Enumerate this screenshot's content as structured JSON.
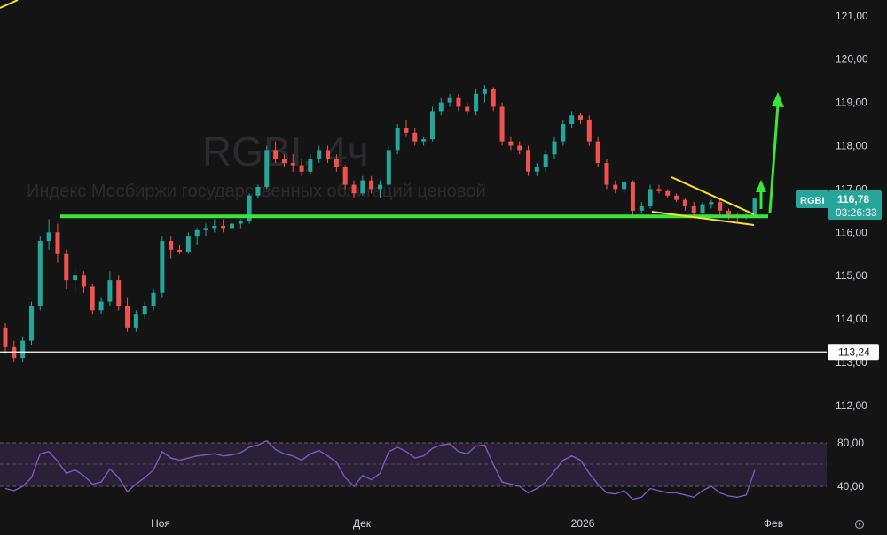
{
  "chart_data": {
    "type": "candlestick",
    "symbol": "RGBI",
    "watermark": {
      "title": "RGBI, 4ч",
      "subtitle": "Индекс Мосбиржи государственных облигаций ценовой"
    },
    "price_axis": {
      "ylim": [
        111.4,
        121.4
      ],
      "ticks": [
        "121,00",
        "120,00",
        "119,00",
        "118,00",
        "117,00",
        "116,00",
        "115,00",
        "114,00",
        "113,00",
        "112,00"
      ]
    },
    "time_axis": {
      "ticks": [
        "Ноя",
        "Дек",
        "2026",
        "Фев"
      ]
    },
    "last_price": {
      "symbol": "RGBI",
      "value": "116,78",
      "countdown": "03:26:33",
      "color": "#26a69a"
    },
    "horizontal_line": {
      "label": "113,24",
      "value": 113.24
    },
    "support_level": 116.37,
    "colors": {
      "up": "#26a69a",
      "down": "#ef5350",
      "support": "#39e639",
      "triangle": "#f5e12e",
      "rsi": "#7e57c2"
    },
    "candles": [
      [
        113.8,
        113.9,
        113.2,
        113.35
      ],
      [
        113.35,
        113.5,
        113.0,
        113.1
      ],
      [
        113.1,
        113.6,
        113.0,
        113.5
      ],
      [
        113.5,
        114.4,
        113.4,
        114.3
      ],
      [
        114.3,
        115.9,
        114.2,
        115.8
      ],
      [
        115.8,
        116.3,
        115.6,
        116.0
      ],
      [
        116.0,
        116.2,
        115.3,
        115.5
      ],
      [
        115.5,
        115.6,
        114.7,
        114.9
      ],
      [
        114.9,
        115.2,
        114.6,
        115.0
      ],
      [
        115.0,
        115.1,
        114.6,
        114.75
      ],
      [
        114.75,
        114.8,
        114.1,
        114.2
      ],
      [
        114.2,
        114.5,
        114.1,
        114.4
      ],
      [
        114.4,
        115.1,
        114.3,
        114.9
      ],
      [
        114.9,
        115.0,
        114.2,
        114.3
      ],
      [
        114.3,
        114.5,
        113.7,
        113.8
      ],
      [
        113.8,
        114.2,
        113.7,
        114.1
      ],
      [
        114.1,
        114.4,
        114.0,
        114.3
      ],
      [
        114.3,
        114.7,
        114.2,
        114.6
      ],
      [
        114.6,
        115.9,
        114.5,
        115.8
      ],
      [
        115.8,
        115.9,
        115.4,
        115.6
      ],
      [
        115.6,
        115.7,
        115.5,
        115.55
      ],
      [
        115.55,
        116.0,
        115.5,
        115.9
      ],
      [
        115.9,
        116.1,
        115.7,
        116.05
      ],
      [
        116.05,
        116.2,
        115.9,
        116.1
      ],
      [
        116.1,
        116.3,
        116.0,
        116.15
      ],
      [
        116.15,
        116.3,
        116.0,
        116.1
      ],
      [
        116.1,
        116.3,
        116.0,
        116.2
      ],
      [
        116.2,
        116.3,
        116.1,
        116.25
      ],
      [
        116.25,
        116.9,
        116.2,
        116.85
      ],
      [
        116.85,
        117.1,
        116.8,
        117.05
      ],
      [
        117.05,
        118.0,
        117.0,
        117.9
      ],
      [
        117.9,
        118.1,
        117.6,
        117.7
      ],
      [
        117.7,
        117.8,
        117.5,
        117.6
      ],
      [
        117.6,
        117.8,
        117.4,
        117.55
      ],
      [
        117.55,
        117.7,
        117.3,
        117.4
      ],
      [
        117.4,
        117.8,
        117.35,
        117.7
      ],
      [
        117.7,
        118.0,
        117.6,
        117.9
      ],
      [
        117.9,
        118.0,
        117.6,
        117.7
      ],
      [
        117.7,
        117.8,
        117.4,
        117.5
      ],
      [
        117.5,
        117.55,
        117.0,
        117.1
      ],
      [
        117.1,
        117.2,
        116.8,
        116.9
      ],
      [
        116.9,
        117.3,
        116.85,
        117.2
      ],
      [
        117.2,
        117.3,
        116.9,
        117.0
      ],
      [
        117.0,
        117.2,
        116.8,
        117.1
      ],
      [
        117.1,
        118.0,
        117.0,
        117.9
      ],
      [
        117.9,
        118.5,
        117.8,
        118.4
      ],
      [
        118.4,
        118.6,
        118.2,
        118.3
      ],
      [
        118.3,
        118.4,
        118.0,
        118.1
      ],
      [
        118.1,
        118.2,
        118.0,
        118.15
      ],
      [
        118.15,
        118.9,
        118.1,
        118.8
      ],
      [
        118.8,
        119.1,
        118.7,
        119.0
      ],
      [
        119.0,
        119.2,
        118.9,
        119.1
      ],
      [
        119.1,
        119.2,
        118.8,
        118.9
      ],
      [
        118.9,
        119.0,
        118.7,
        118.8
      ],
      [
        118.8,
        119.3,
        118.7,
        119.2
      ],
      [
        119.2,
        119.4,
        119.0,
        119.3
      ],
      [
        119.3,
        119.35,
        118.8,
        118.9
      ],
      [
        118.9,
        119.0,
        118.0,
        118.1
      ],
      [
        118.1,
        118.2,
        117.9,
        118.0
      ],
      [
        118.0,
        118.1,
        117.8,
        117.9
      ],
      [
        117.9,
        118.0,
        117.3,
        117.4
      ],
      [
        117.4,
        117.6,
        117.3,
        117.5
      ],
      [
        117.5,
        117.9,
        117.4,
        117.8
      ],
      [
        117.8,
        118.2,
        117.7,
        118.1
      ],
      [
        118.1,
        118.6,
        118.0,
        118.5
      ],
      [
        118.5,
        118.8,
        118.4,
        118.7
      ],
      [
        118.7,
        118.75,
        118.5,
        118.6
      ],
      [
        118.6,
        118.7,
        118.0,
        118.1
      ],
      [
        118.1,
        118.2,
        117.5,
        117.6
      ],
      [
        117.6,
        117.7,
        117.0,
        117.1
      ],
      [
        117.1,
        117.2,
        116.9,
        117.0
      ],
      [
        117.0,
        117.2,
        116.9,
        117.15
      ],
      [
        117.15,
        117.2,
        116.4,
        116.5
      ],
      [
        116.5,
        116.7,
        116.45,
        116.6
      ],
      [
        116.6,
        117.1,
        116.55,
        117.0
      ],
      [
        117.0,
        117.1,
        116.9,
        116.95
      ],
      [
        116.95,
        117.0,
        116.8,
        116.85
      ],
      [
        116.85,
        116.9,
        116.7,
        116.75
      ],
      [
        116.75,
        116.8,
        116.5,
        116.6
      ],
      [
        116.6,
        116.7,
        116.4,
        116.45
      ],
      [
        116.45,
        116.7,
        116.4,
        116.65
      ],
      [
        116.65,
        116.75,
        116.55,
        116.7
      ],
      [
        116.7,
        116.75,
        116.4,
        116.5
      ],
      [
        116.5,
        116.55,
        116.3,
        116.4
      ],
      [
        116.4,
        116.45,
        116.25,
        116.35
      ],
      [
        116.35,
        116.45,
        116.3,
        116.4
      ],
      [
        116.4,
        116.8,
        116.35,
        116.78
      ]
    ],
    "rsi": {
      "ticks": [
        "80,00",
        "40,00"
      ],
      "ylim": [
        22,
        88
      ],
      "band": [
        30,
        70
      ],
      "values": [
        38,
        36,
        40,
        48,
        70,
        72,
        63,
        52,
        55,
        50,
        42,
        44,
        56,
        48,
        35,
        42,
        48,
        55,
        72,
        66,
        64,
        66,
        68,
        69,
        70,
        68,
        69,
        71,
        76,
        78,
        82,
        74,
        70,
        68,
        64,
        70,
        73,
        68,
        62,
        48,
        40,
        50,
        46,
        52,
        72,
        76,
        72,
        66,
        68,
        75,
        78,
        79,
        72,
        70,
        77,
        78,
        60,
        44,
        42,
        40,
        34,
        38,
        44,
        54,
        64,
        68,
        64,
        52,
        42,
        34,
        33,
        36,
        28,
        30,
        38,
        36,
        34,
        34,
        32,
        30,
        36,
        40,
        34,
        31,
        30,
        32,
        55
      ]
    }
  }
}
